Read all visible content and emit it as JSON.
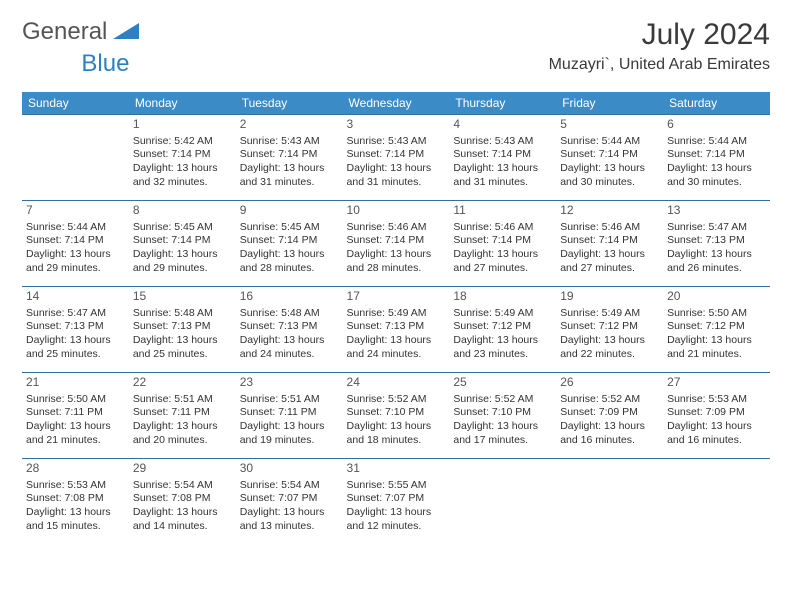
{
  "brand": {
    "word1": "General",
    "word2": "Blue",
    "logo_color": "#2f80c2"
  },
  "title": "July 2024",
  "location": "Muzayri`, United Arab Emirates",
  "header_bg": "#3b8bc6",
  "header_fg": "#ffffff",
  "rule_color": "#2f6fa3",
  "weekdays": [
    "Sunday",
    "Monday",
    "Tuesday",
    "Wednesday",
    "Thursday",
    "Friday",
    "Saturday"
  ],
  "first_weekday_offset": 1,
  "days": [
    {
      "n": 1,
      "sunrise": "5:42 AM",
      "sunset": "7:14 PM",
      "daylight": "13 hours and 32 minutes."
    },
    {
      "n": 2,
      "sunrise": "5:43 AM",
      "sunset": "7:14 PM",
      "daylight": "13 hours and 31 minutes."
    },
    {
      "n": 3,
      "sunrise": "5:43 AM",
      "sunset": "7:14 PM",
      "daylight": "13 hours and 31 minutes."
    },
    {
      "n": 4,
      "sunrise": "5:43 AM",
      "sunset": "7:14 PM",
      "daylight": "13 hours and 31 minutes."
    },
    {
      "n": 5,
      "sunrise": "5:44 AM",
      "sunset": "7:14 PM",
      "daylight": "13 hours and 30 minutes."
    },
    {
      "n": 6,
      "sunrise": "5:44 AM",
      "sunset": "7:14 PM",
      "daylight": "13 hours and 30 minutes."
    },
    {
      "n": 7,
      "sunrise": "5:44 AM",
      "sunset": "7:14 PM",
      "daylight": "13 hours and 29 minutes."
    },
    {
      "n": 8,
      "sunrise": "5:45 AM",
      "sunset": "7:14 PM",
      "daylight": "13 hours and 29 minutes."
    },
    {
      "n": 9,
      "sunrise": "5:45 AM",
      "sunset": "7:14 PM",
      "daylight": "13 hours and 28 minutes."
    },
    {
      "n": 10,
      "sunrise": "5:46 AM",
      "sunset": "7:14 PM",
      "daylight": "13 hours and 28 minutes."
    },
    {
      "n": 11,
      "sunrise": "5:46 AM",
      "sunset": "7:14 PM",
      "daylight": "13 hours and 27 minutes."
    },
    {
      "n": 12,
      "sunrise": "5:46 AM",
      "sunset": "7:14 PM",
      "daylight": "13 hours and 27 minutes."
    },
    {
      "n": 13,
      "sunrise": "5:47 AM",
      "sunset": "7:13 PM",
      "daylight": "13 hours and 26 minutes."
    },
    {
      "n": 14,
      "sunrise": "5:47 AM",
      "sunset": "7:13 PM",
      "daylight": "13 hours and 25 minutes."
    },
    {
      "n": 15,
      "sunrise": "5:48 AM",
      "sunset": "7:13 PM",
      "daylight": "13 hours and 25 minutes."
    },
    {
      "n": 16,
      "sunrise": "5:48 AM",
      "sunset": "7:13 PM",
      "daylight": "13 hours and 24 minutes."
    },
    {
      "n": 17,
      "sunrise": "5:49 AM",
      "sunset": "7:13 PM",
      "daylight": "13 hours and 24 minutes."
    },
    {
      "n": 18,
      "sunrise": "5:49 AM",
      "sunset": "7:12 PM",
      "daylight": "13 hours and 23 minutes."
    },
    {
      "n": 19,
      "sunrise": "5:49 AM",
      "sunset": "7:12 PM",
      "daylight": "13 hours and 22 minutes."
    },
    {
      "n": 20,
      "sunrise": "5:50 AM",
      "sunset": "7:12 PM",
      "daylight": "13 hours and 21 minutes."
    },
    {
      "n": 21,
      "sunrise": "5:50 AM",
      "sunset": "7:11 PM",
      "daylight": "13 hours and 21 minutes."
    },
    {
      "n": 22,
      "sunrise": "5:51 AM",
      "sunset": "7:11 PM",
      "daylight": "13 hours and 20 minutes."
    },
    {
      "n": 23,
      "sunrise": "5:51 AM",
      "sunset": "7:11 PM",
      "daylight": "13 hours and 19 minutes."
    },
    {
      "n": 24,
      "sunrise": "5:52 AM",
      "sunset": "7:10 PM",
      "daylight": "13 hours and 18 minutes."
    },
    {
      "n": 25,
      "sunrise": "5:52 AM",
      "sunset": "7:10 PM",
      "daylight": "13 hours and 17 minutes."
    },
    {
      "n": 26,
      "sunrise": "5:52 AM",
      "sunset": "7:09 PM",
      "daylight": "13 hours and 16 minutes."
    },
    {
      "n": 27,
      "sunrise": "5:53 AM",
      "sunset": "7:09 PM",
      "daylight": "13 hours and 16 minutes."
    },
    {
      "n": 28,
      "sunrise": "5:53 AM",
      "sunset": "7:08 PM",
      "daylight": "13 hours and 15 minutes."
    },
    {
      "n": 29,
      "sunrise": "5:54 AM",
      "sunset": "7:08 PM",
      "daylight": "13 hours and 14 minutes."
    },
    {
      "n": 30,
      "sunrise": "5:54 AM",
      "sunset": "7:07 PM",
      "daylight": "13 hours and 13 minutes."
    },
    {
      "n": 31,
      "sunrise": "5:55 AM",
      "sunset": "7:07 PM",
      "daylight": "13 hours and 12 minutes."
    }
  ],
  "labels": {
    "sunrise": "Sunrise:",
    "sunset": "Sunset:",
    "daylight": "Daylight:"
  }
}
